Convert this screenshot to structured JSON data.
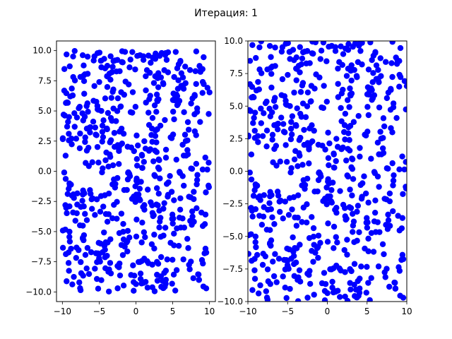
{
  "figure": {
    "title": "Итерация: 1"
  },
  "chart_data": [
    {
      "type": "scatter",
      "title": "",
      "xlabel": "",
      "ylabel": "",
      "xlim": [
        -10.8,
        10.8
      ],
      "ylim": [
        -10.8,
        10.8
      ],
      "xticks": [
        -10,
        -5,
        0,
        5,
        10
      ],
      "xtick_labels": [
        "−10",
        "−5",
        "0",
        "5",
        "10"
      ],
      "yticks": [
        -10,
        -7.5,
        -5,
        -2.5,
        0,
        2.5,
        5,
        7.5,
        10
      ],
      "ytick_labels": [
        "−10.0",
        "−7.5",
        "−5.0",
        "−2.5",
        "0.0",
        "2.5",
        "5.0",
        "7.5",
        "10.0"
      ],
      "grid": false,
      "marker_color": "#0000ff",
      "point_count": 600,
      "distribution": "uniform random points in [-10, 10] x [-10, 10]",
      "seed": 1
    },
    {
      "type": "scatter",
      "title": "",
      "xlabel": "",
      "ylabel": "",
      "xlim": [
        -10,
        10
      ],
      "ylim": [
        -10,
        10
      ],
      "xticks": [
        -10,
        -5,
        0,
        5,
        10
      ],
      "xtick_labels": [
        "−10",
        "−5",
        "0",
        "5",
        "10"
      ],
      "yticks": [
        -10,
        -7.5,
        -5,
        -2.5,
        0,
        2.5,
        5,
        7.5,
        10
      ],
      "ytick_labels": [
        "−10.0",
        "−7.5",
        "−5.0",
        "−2.5",
        "0.0",
        "2.5",
        "5.0",
        "7.5",
        "10.0"
      ],
      "grid": false,
      "marker_color": "#0000ff",
      "point_count": 600,
      "distribution": "same points as left panel",
      "seed": 1
    }
  ]
}
